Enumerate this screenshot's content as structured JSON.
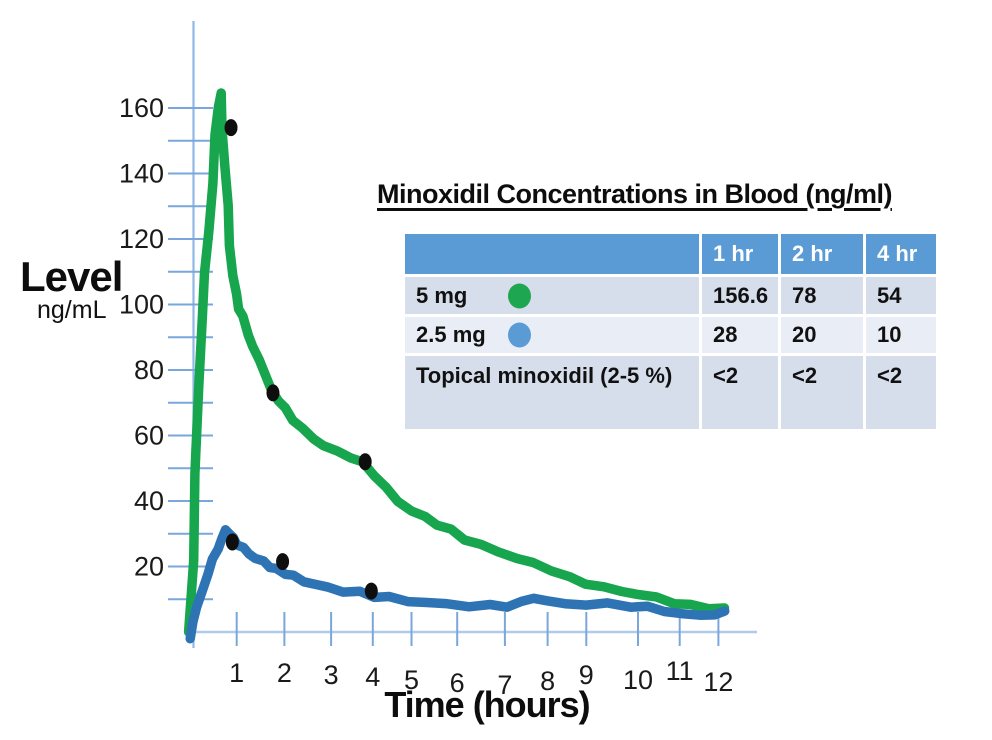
{
  "chart_data": {
    "type": "line",
    "title": "Minoxidil Concentrations in Blood (ng/ml)",
    "xlabel": "Time (hours)",
    "ylabel": "Level",
    "ylabel_units": "ng/mL",
    "xlim": [
      0,
      12.3
    ],
    "ylim": [
      0,
      170
    ],
    "x_ticks": [
      1,
      2,
      3,
      4,
      5,
      6,
      7,
      8,
      9,
      10,
      11,
      12
    ],
    "y_tick_minor_step": 10,
    "y_tick_labels": [
      20,
      40,
      60,
      80,
      100,
      120,
      140,
      160
    ],
    "grid": false,
    "legend_position": "in-table",
    "series": [
      {
        "name": "5 mg",
        "color": "#17A64D",
        "points": [
          [
            -0.1,
            0
          ],
          [
            0.0,
            22
          ],
          [
            0.06,
            48
          ],
          [
            0.13,
            75
          ],
          [
            0.2,
            96
          ],
          [
            0.28,
            110
          ],
          [
            0.36,
            122
          ],
          [
            0.44,
            137
          ],
          [
            0.52,
            152
          ],
          [
            0.58,
            160
          ],
          [
            0.63,
            165
          ],
          [
            0.68,
            153
          ],
          [
            0.73,
            142
          ],
          [
            0.79,
            130
          ],
          [
            0.85,
            118
          ],
          [
            0.91,
            109
          ],
          [
            0.98,
            103
          ],
          [
            1.06,
            99
          ],
          [
            1.14,
            96
          ],
          [
            1.25,
            91
          ],
          [
            1.38,
            87
          ],
          [
            1.52,
            83
          ],
          [
            1.66,
            78
          ],
          [
            1.8,
            74
          ],
          [
            1.95,
            71
          ],
          [
            2.1,
            68
          ],
          [
            2.3,
            65
          ],
          [
            2.5,
            62
          ],
          [
            2.75,
            59
          ],
          [
            3.0,
            57
          ],
          [
            3.3,
            55
          ],
          [
            3.6,
            53.5
          ],
          [
            3.9,
            51.5
          ],
          [
            4.15,
            48
          ],
          [
            4.4,
            44
          ],
          [
            4.7,
            40
          ],
          [
            5.0,
            37
          ],
          [
            5.3,
            35
          ],
          [
            5.6,
            33
          ],
          [
            5.9,
            31
          ],
          [
            6.2,
            28.5
          ],
          [
            6.6,
            26.5
          ],
          [
            7.0,
            24.5
          ],
          [
            7.4,
            22.5
          ],
          [
            7.8,
            21
          ],
          [
            8.2,
            19
          ],
          [
            8.6,
            16.5
          ],
          [
            9.0,
            15
          ],
          [
            9.4,
            13.5
          ],
          [
            9.8,
            12.5
          ],
          [
            10.2,
            11.5
          ],
          [
            10.6,
            10.5
          ],
          [
            11.0,
            9
          ],
          [
            11.4,
            8
          ],
          [
            11.8,
            7.5
          ],
          [
            12.15,
            7
          ]
        ],
        "marker_points": [
          [
            0.87,
            154
          ],
          [
            1.83,
            73
          ],
          [
            3.94,
            52
          ]
        ],
        "table_values": {
          "1 hr": 156.6,
          "2 hr": 78,
          "4 hr": 54
        }
      },
      {
        "name": "2.5 mg",
        "color": "#2E74B5",
        "points": [
          [
            -0.08,
            -2
          ],
          [
            0.0,
            3
          ],
          [
            0.1,
            8
          ],
          [
            0.22,
            13
          ],
          [
            0.34,
            18
          ],
          [
            0.46,
            22
          ],
          [
            0.56,
            25.5
          ],
          [
            0.66,
            28.5
          ],
          [
            0.76,
            31
          ],
          [
            0.84,
            30
          ],
          [
            0.92,
            28.5
          ],
          [
            1.02,
            27
          ],
          [
            1.14,
            25.5
          ],
          [
            1.28,
            24
          ],
          [
            1.44,
            22.5
          ],
          [
            1.6,
            21.5
          ],
          [
            1.76,
            20
          ],
          [
            1.92,
            19
          ],
          [
            2.1,
            18
          ],
          [
            2.3,
            17
          ],
          [
            2.55,
            15.5
          ],
          [
            2.8,
            14.5
          ],
          [
            3.1,
            13.5
          ],
          [
            3.45,
            12.5
          ],
          [
            3.8,
            12
          ],
          [
            4.15,
            11
          ],
          [
            4.5,
            10.5
          ],
          [
            4.9,
            9.5
          ],
          [
            5.3,
            9
          ],
          [
            5.8,
            8.5
          ],
          [
            6.3,
            8
          ],
          [
            6.8,
            8
          ],
          [
            7.2,
            8
          ],
          [
            7.5,
            9
          ],
          [
            7.8,
            10.5
          ],
          [
            8.1,
            9.5
          ],
          [
            8.5,
            8.5
          ],
          [
            9.0,
            8.5
          ],
          [
            9.5,
            8.5
          ],
          [
            10.0,
            8
          ],
          [
            10.4,
            7.5
          ],
          [
            10.8,
            6.5
          ],
          [
            11.2,
            5.5
          ],
          [
            11.6,
            5
          ],
          [
            11.95,
            5.5
          ],
          [
            12.15,
            6
          ]
        ],
        "marker_points": [
          [
            0.9,
            27.5
          ],
          [
            2.05,
            21.5
          ],
          [
            4.08,
            12.5
          ]
        ],
        "table_values": {
          "1 hr": 28,
          "2 hr": 20,
          "4 hr": 10
        }
      }
    ],
    "marker_color": "#0e0e0e"
  },
  "table": {
    "headers": [
      "",
      "1 hr",
      "2 hr",
      "4 hr"
    ],
    "rows": [
      {
        "label": "5 mg",
        "swatch": "#1FA650",
        "values": [
          "156.6",
          "78",
          "54"
        ]
      },
      {
        "label": "2.5 mg",
        "swatch": "#5B9BD5",
        "values": [
          "28",
          "20",
          "10"
        ]
      },
      {
        "label": "Topical minoxidil (2-5 %)",
        "swatch": null,
        "values": [
          "<2",
          "<2",
          "<2"
        ]
      }
    ],
    "header_bg": "#5B9BD5",
    "row_bg_odd": "#D6DEEC",
    "row_bg_even": "#E9EDF6"
  },
  "colors": {
    "y_axis_line": "#90B8E6",
    "x_axis_line": "#AFCBEA",
    "tick_line": "#79A7DB",
    "tick_text": "#1a1a1a"
  }
}
